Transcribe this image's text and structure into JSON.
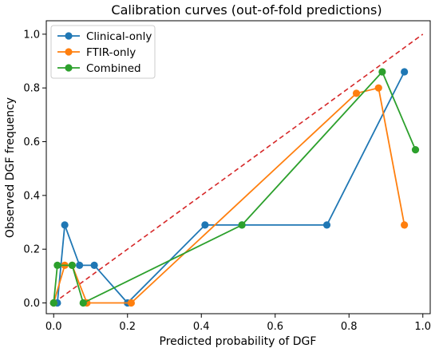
{
  "chart_data": {
    "type": "line",
    "title": "Calibration curves (out-of-fold predictions)",
    "xlabel": "Predicted probability of DGF",
    "ylabel": "Observed DGF frequency",
    "xlim": [
      -0.02,
      1.02
    ],
    "ylim": [
      -0.04,
      1.05
    ],
    "xticks": [
      0.0,
      0.2,
      0.4,
      0.6,
      0.8,
      1.0
    ],
    "yticks": [
      0.0,
      0.2,
      0.4,
      0.6,
      0.8,
      1.0
    ],
    "tick_labels": [
      "0.0",
      "0.2",
      "0.4",
      "0.6",
      "0.8",
      "1.0"
    ],
    "grid": false,
    "legend_position": "top-left",
    "reference_line": {
      "x": [
        0,
        1
      ],
      "y": [
        0,
        1
      ],
      "color": "#d62728",
      "style": "dashed"
    },
    "series": [
      {
        "name": "Clinical-only",
        "color": "#1f77b4",
        "x": [
          0.0,
          0.01,
          0.03,
          0.07,
          0.11,
          0.2,
          0.41,
          0.51,
          0.74,
          0.95
        ],
        "y": [
          0.0,
          0.0,
          0.29,
          0.14,
          0.14,
          0.0,
          0.29,
          0.29,
          0.29,
          0.86
        ]
      },
      {
        "name": "FTIR-only",
        "color": "#ff7f0e",
        "x": [
          0.0,
          0.03,
          0.05,
          0.09,
          0.21,
          0.82,
          0.88,
          0.95
        ],
        "y": [
          0.0,
          0.14,
          0.14,
          0.0,
          0.0,
          0.78,
          0.8,
          0.29
        ]
      },
      {
        "name": "Combined",
        "color": "#2ca02c",
        "x": [
          0.0,
          0.01,
          0.05,
          0.08,
          0.51,
          0.89,
          0.98
        ],
        "y": [
          0.0,
          0.14,
          0.14,
          0.0,
          0.29,
          0.86,
          0.57
        ]
      }
    ]
  }
}
